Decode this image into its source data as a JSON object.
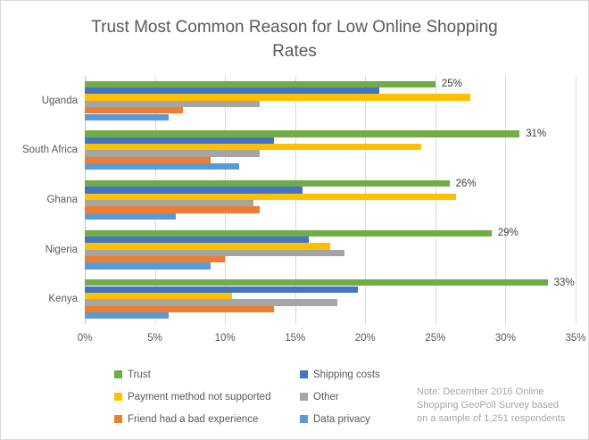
{
  "title_lines": [
    "Trust Most Common Reason for Low Online Shopping",
    "Rates"
  ],
  "chart_data": {
    "type": "bar",
    "orientation": "horizontal",
    "title": "Trust Most Common Reason for Low Online Shopping Rates",
    "categories": [
      "Uganda",
      "South Africa",
      "Ghana",
      "Nigeria",
      "Kenya"
    ],
    "series": [
      {
        "name": "Trust",
        "color": "#70AD47",
        "values": [
          25,
          31,
          26,
          29,
          33
        ],
        "data_labels": [
          "25%",
          "31%",
          "26%",
          "29%",
          "33%"
        ]
      },
      {
        "name": "Shipping costs",
        "color": "#4472C4",
        "values": [
          21,
          13.5,
          15.5,
          16,
          19.5
        ]
      },
      {
        "name": "Payment method not supported",
        "color": "#FFC000",
        "values": [
          27.5,
          24,
          26.5,
          17.5,
          10.5
        ]
      },
      {
        "name": "Other",
        "color": "#A5A5A5",
        "values": [
          12.5,
          12.5,
          12,
          18.5,
          18
        ]
      },
      {
        "name": "Friend had a bad experience",
        "color": "#ED7D31",
        "values": [
          7,
          9,
          12.5,
          10,
          13.5
        ]
      },
      {
        "name": "Data privacy",
        "color": "#5B9BD5",
        "values": [
          6,
          11,
          6.5,
          9,
          6
        ]
      }
    ],
    "x_ticks": [
      "0%",
      "5%",
      "10%",
      "15%",
      "20%",
      "25%",
      "30%",
      "35%"
    ],
    "xlim": [
      0,
      35
    ],
    "grid": "vertical",
    "legend_position": "bottom-left",
    "data_labels_on_series": "Trust"
  },
  "note": {
    "lines": [
      "Note: December 2016 Online",
      "Shopping  GeoPoll Survey based",
      "on a sample of 1,251 respondents"
    ]
  },
  "colors": {
    "gridline": "#D9D9D9",
    "axis_line": "#BFBFBF",
    "title_text": "#595959",
    "axis_text": "#595959",
    "data_label_text": "#404040",
    "note_text": "#A6A6A6",
    "border": "#D9D9D9"
  }
}
